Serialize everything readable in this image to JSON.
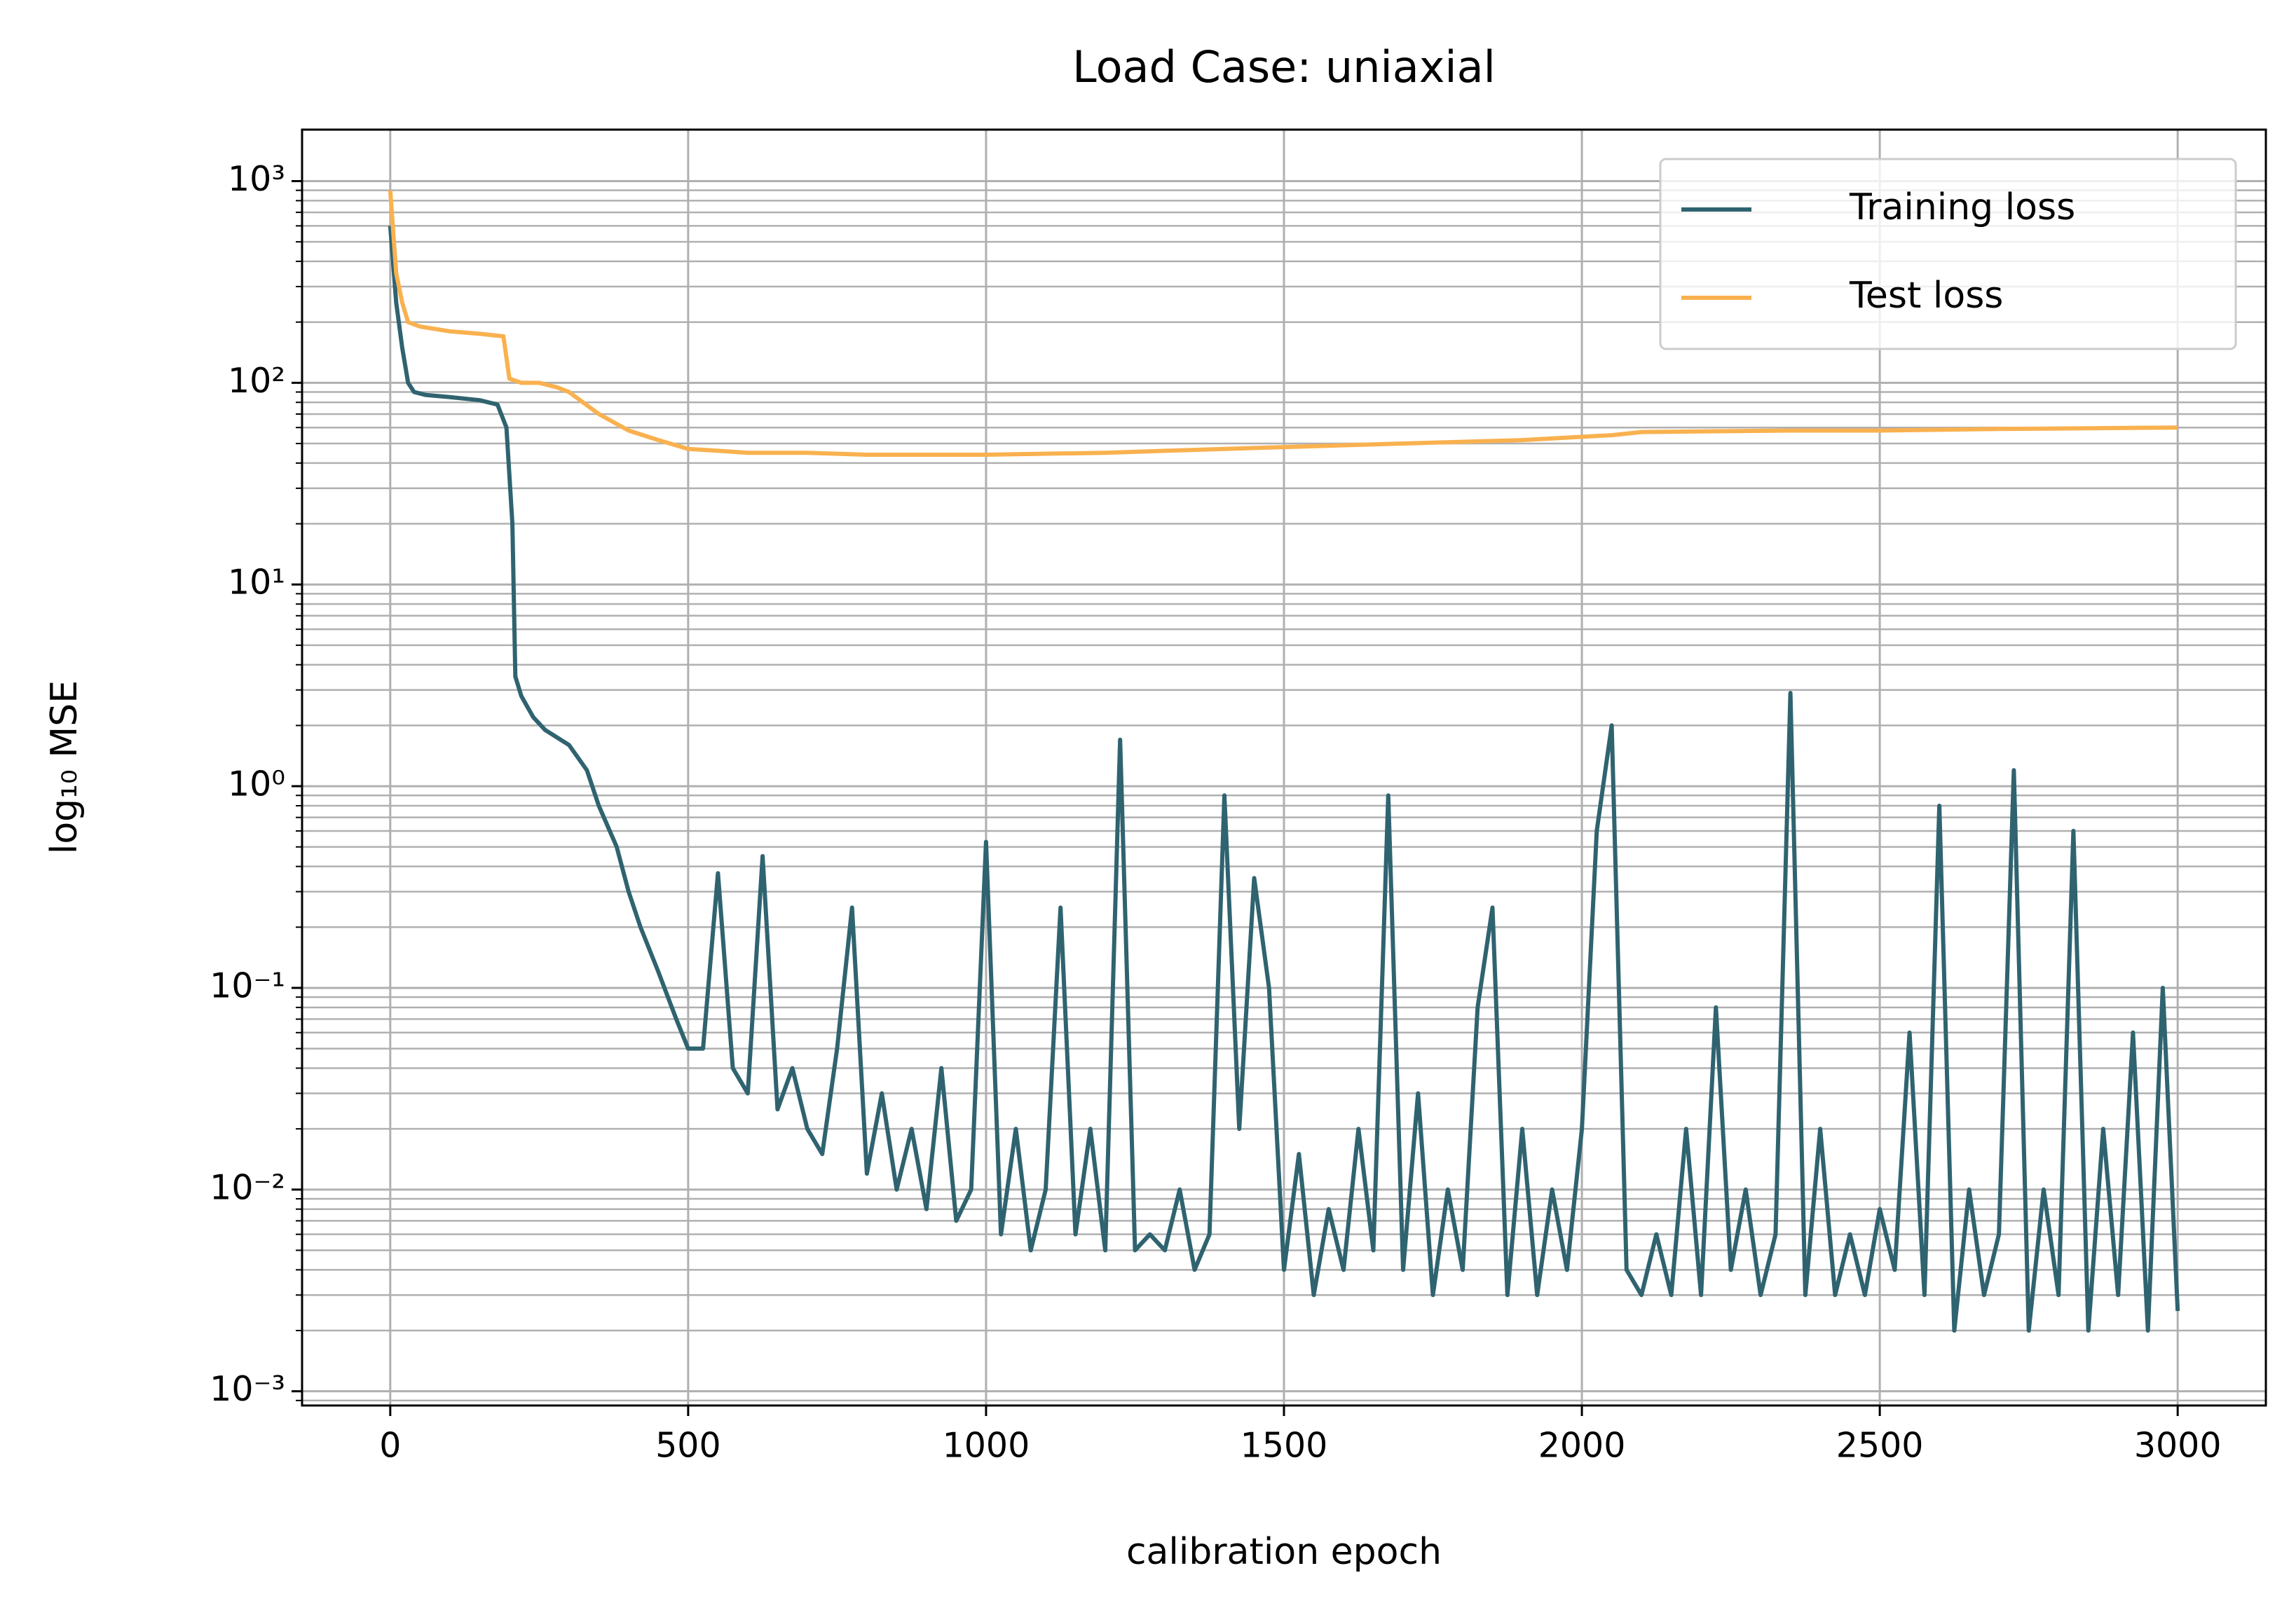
{
  "chart_data": {
    "type": "line",
    "title": "Load Case: uniaxial",
    "x_label": "calibration epoch",
    "y_label": "log₁₀ MSE",
    "log_y": true,
    "grid": true,
    "legend": "upper right",
    "xlim": [
      -148,
      3148
    ],
    "xticks": [
      0,
      500,
      1000,
      1500,
      2000,
      2500,
      3000
    ],
    "ylim": [
      0.00085,
      1800
    ],
    "yticks": [
      {
        "value": 0.001,
        "label": "10⁻³"
      },
      {
        "value": 0.01,
        "label": "10⁻²"
      },
      {
        "value": 0.1,
        "label": "10⁻¹"
      },
      {
        "value": 1,
        "label": "10⁰"
      },
      {
        "value": 10,
        "label": "10¹"
      },
      {
        "value": 100,
        "label": "10²"
      },
      {
        "value": 1000,
        "label": "10³"
      }
    ],
    "series": [
      {
        "name": "Training loss",
        "color": "#2f6370",
        "x": [
          0,
          10,
          20,
          30,
          40,
          60,
          100,
          150,
          180,
          195,
          205,
          210,
          220,
          240,
          260,
          300,
          330,
          350,
          380,
          400,
          420,
          450,
          480,
          500,
          525,
          550,
          575,
          600,
          625,
          650,
          675,
          700,
          725,
          750,
          775,
          800,
          825,
          850,
          875,
          900,
          925,
          950,
          975,
          1000,
          1025,
          1050,
          1075,
          1100,
          1125,
          1150,
          1175,
          1200,
          1225,
          1250,
          1275,
          1300,
          1325,
          1350,
          1375,
          1400,
          1425,
          1450,
          1475,
          1500,
          1525,
          1550,
          1575,
          1600,
          1625,
          1650,
          1675,
          1700,
          1725,
          1750,
          1775,
          1800,
          1825,
          1850,
          1875,
          1900,
          1925,
          1950,
          1975,
          2000,
          2025,
          2050,
          2075,
          2100,
          2125,
          2150,
          2175,
          2200,
          2225,
          2250,
          2275,
          2300,
          2325,
          2350,
          2375,
          2400,
          2425,
          2450,
          2475,
          2500,
          2525,
          2550,
          2575,
          2600,
          2625,
          2650,
          2675,
          2700,
          2725,
          2750,
          2775,
          2800,
          2825,
          2850,
          2875,
          2900,
          2925,
          2950,
          2975,
          3000
        ],
        "values": [
          600,
          250,
          150,
          100,
          90,
          87,
          85,
          82,
          78,
          60,
          20,
          3.5,
          2.8,
          2.2,
          1.9,
          1.6,
          1.2,
          0.8,
          0.5,
          0.3,
          0.2,
          0.12,
          0.07,
          0.05,
          0.05,
          0.37,
          0.04,
          0.03,
          0.45,
          0.025,
          0.04,
          0.02,
          0.015,
          0.05,
          0.25,
          0.012,
          0.03,
          0.01,
          0.02,
          0.008,
          0.04,
          0.007,
          0.01,
          0.53,
          0.006,
          0.02,
          0.005,
          0.01,
          0.25,
          0.006,
          0.02,
          0.005,
          1.7,
          0.005,
          0.006,
          0.005,
          0.01,
          0.004,
          0.006,
          0.9,
          0.02,
          0.35,
          0.1,
          0.004,
          0.015,
          0.003,
          0.008,
          0.004,
          0.02,
          0.005,
          0.9,
          0.004,
          0.03,
          0.003,
          0.01,
          0.004,
          0.08,
          0.25,
          0.003,
          0.02,
          0.003,
          0.01,
          0.004,
          0.02,
          0.6,
          2.0,
          0.004,
          0.003,
          0.006,
          0.003,
          0.02,
          0.003,
          0.08,
          0.004,
          0.01,
          0.003,
          0.006,
          2.9,
          0.003,
          0.02,
          0.003,
          0.006,
          0.003,
          0.008,
          0.004,
          0.06,
          0.003,
          0.8,
          0.002,
          0.01,
          0.003,
          0.006,
          1.2,
          0.002,
          0.01,
          0.003,
          0.6,
          0.002,
          0.02,
          0.003,
          0.06,
          0.002,
          0.1,
          0.0025
        ]
      },
      {
        "name": "Test loss",
        "color": "#f9b14f",
        "x": [
          0,
          10,
          20,
          30,
          50,
          100,
          150,
          190,
          200,
          220,
          250,
          280,
          300,
          350,
          400,
          450,
          500,
          550,
          600,
          700,
          800,
          900,
          1000,
          1200,
          1400,
          1500,
          1700,
          1900,
          2050,
          2100,
          2350,
          2500,
          2700,
          3000
        ],
        "values": [
          900,
          350,
          250,
          200,
          190,
          180,
          175,
          170,
          105,
          100,
          100,
          95,
          90,
          70,
          58,
          52,
          47,
          46,
          45,
          45,
          44,
          44,
          44,
          45,
          47,
          48,
          50,
          52,
          55,
          57,
          58,
          58,
          59,
          60
        ]
      }
    ]
  }
}
